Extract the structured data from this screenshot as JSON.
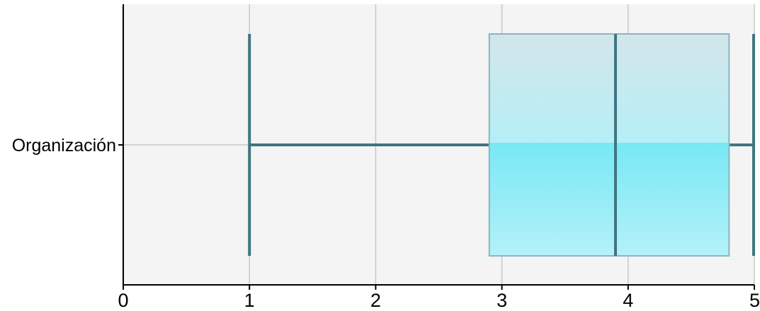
{
  "chart_data": {
    "type": "box",
    "orientation": "horizontal",
    "title": "",
    "xlabel": "",
    "ylabel": "",
    "xlim": [
      0,
      5
    ],
    "x_ticks": [
      0,
      1,
      2,
      3,
      4,
      5
    ],
    "x_tick_labels": [
      "0",
      "1",
      "2",
      "3",
      "4",
      "5"
    ],
    "grid": true,
    "categories": [
      "Organización"
    ],
    "boxes": [
      {
        "category": "Organización",
        "whisker_low": 1.0,
        "q1": 2.9,
        "median": 3.9,
        "q3": 4.8,
        "whisker_high": 5.0
      }
    ],
    "colors": {
      "plot_background": "#f4f4f4",
      "grid": "#c8c8c8",
      "axis": "#000000",
      "whisker": "#3f7680",
      "median": "#3f7680",
      "box_top": "#d2e6ea",
      "box_mid_upper": "#b6eff6",
      "box_mid_lower": "#78e8f5",
      "box_bottom": "#b4f1f8",
      "box_border": "#8ab5bd"
    }
  }
}
